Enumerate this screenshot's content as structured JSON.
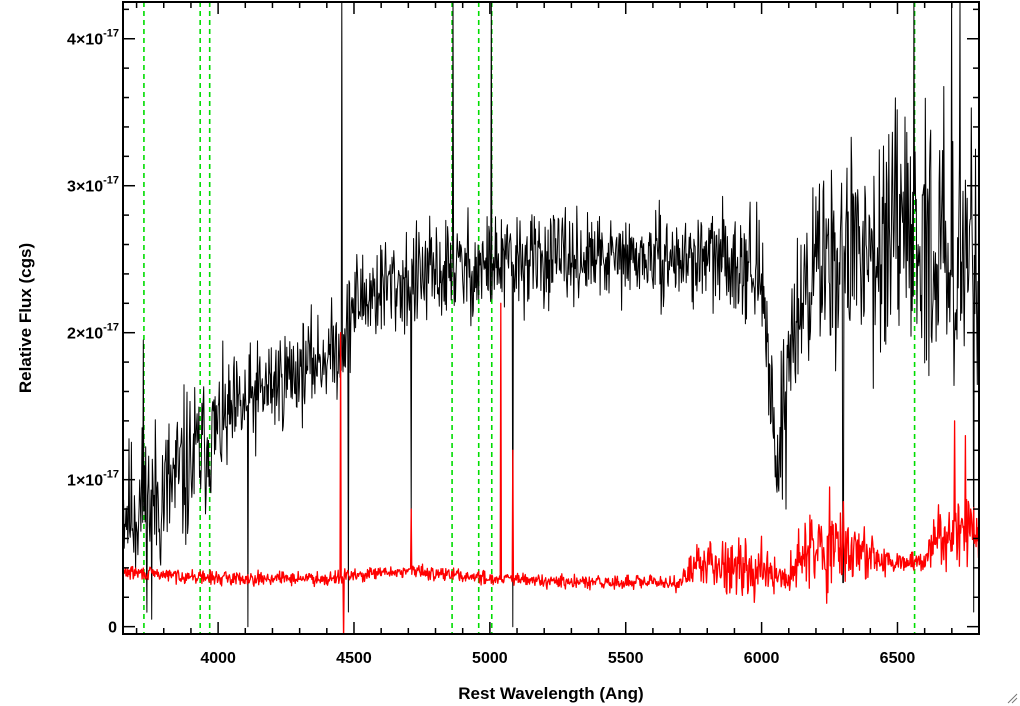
{
  "chart_data": {
    "type": "line",
    "xlabel": "Rest Wavelength (Ang)",
    "ylabel": "Relative Flux (cgs)",
    "xlim": [
      3650,
      6800
    ],
    "ylim": [
      -5e-19,
      4.25e-17
    ],
    "x_ticks": [
      {
        "value": 4000,
        "label": "4000"
      },
      {
        "value": 4500,
        "label": "4500"
      },
      {
        "value": 5000,
        "label": "5000"
      },
      {
        "value": 5500,
        "label": "5500"
      },
      {
        "value": 6000,
        "label": "6000"
      },
      {
        "value": 6500,
        "label": "6500"
      }
    ],
    "y_ticks": [
      {
        "value": 0,
        "mantissa": "0",
        "exponent": ""
      },
      {
        "value": 1e-17,
        "mantissa": "1×10",
        "exponent": "-17"
      },
      {
        "value": 2e-17,
        "mantissa": "2×10",
        "exponent": "-17"
      },
      {
        "value": 3e-17,
        "mantissa": "3×10",
        "exponent": "-17"
      },
      {
        "value": 4e-17,
        "mantissa": "4×10",
        "exponent": "-17"
      }
    ],
    "x_minor_step": 100,
    "y_minor_step": 2e-18,
    "grid": false,
    "series": [
      {
        "color": "#000000",
        "stroke_width": 1,
        "noise_seed": 11,
        "anchors": [
          [
            3660,
            8e-18,
            5e-18
          ],
          [
            3700,
            8e-18,
            6e-18
          ],
          [
            3800,
            9e-18,
            6e-18
          ],
          [
            3900,
            1.1e-17,
            6e-18
          ],
          [
            4000,
            1.35e-17,
            4.5e-18
          ],
          [
            4100,
            1.5e-17,
            4e-18
          ],
          [
            4200,
            1.65e-17,
            4e-18
          ],
          [
            4300,
            1.75e-17,
            3.5e-18
          ],
          [
            4450,
            1.9e-17,
            3.5e-18
          ],
          [
            4500,
            2.2e-17,
            4e-18
          ],
          [
            4600,
            2.3e-17,
            4e-18
          ],
          [
            4800,
            2.4e-17,
            4e-18
          ],
          [
            5000,
            2.45e-17,
            4e-18
          ],
          [
            5200,
            2.5e-17,
            3.5e-18
          ],
          [
            5400,
            2.5e-17,
            3e-18
          ],
          [
            5600,
            2.5e-17,
            3e-18
          ],
          [
            5800,
            2.5e-17,
            3.5e-18
          ],
          [
            5950,
            2.5e-17,
            4e-18
          ],
          [
            6000,
            2.3e-17,
            5e-18
          ],
          [
            6060,
            1.1e-17,
            4e-18
          ],
          [
            6100,
            1.9e-17,
            6e-18
          ],
          [
            6200,
            2.5e-17,
            7e-18
          ],
          [
            6400,
            2.6e-17,
            8e-18
          ],
          [
            6600,
            2.6e-17,
            9e-18
          ],
          [
            6800,
            2.5e-17,
            1e-17
          ]
        ],
        "spikes": [
          [
            3725,
            1.95e-17
          ],
          [
            3755,
            5e-19
          ],
          [
            4110,
            0.0
          ],
          [
            4455,
            4.3e-17
          ],
          [
            4480,
            1e-18
          ],
          [
            4710,
            7e-18
          ],
          [
            4865,
            4.3e-17
          ],
          [
            5005,
            4.3e-17
          ],
          [
            5085,
            0.0
          ],
          [
            6090,
            8e-18
          ],
          [
            6300,
            3e-18
          ],
          [
            6560,
            4.3e-17
          ],
          [
            6700,
            4.3e-17
          ],
          [
            6730,
            4.3e-17
          ],
          [
            6780,
            1e-18
          ]
        ]
      },
      {
        "color": "#ff0000",
        "stroke_width": 1.3,
        "noise_seed": 29,
        "anchors": [
          [
            3660,
            3.7e-18,
            5e-19
          ],
          [
            4000,
            3.3e-18,
            5e-19
          ],
          [
            4400,
            3.3e-18,
            5e-19
          ],
          [
            4700,
            3.8e-18,
            5e-19
          ],
          [
            5000,
            3.3e-18,
            5e-19
          ],
          [
            5300,
            3e-18,
            5e-19
          ],
          [
            5700,
            3e-18,
            6e-19
          ],
          [
            5780,
            4.5e-18,
            2e-18
          ],
          [
            6000,
            4e-18,
            2e-18
          ],
          [
            6080,
            3e-18,
            1e-18
          ],
          [
            6150,
            5e-18,
            3e-18
          ],
          [
            6300,
            5.5e-18,
            3e-18
          ],
          [
            6480,
            4.2e-18,
            1e-18
          ],
          [
            6600,
            4.5e-18,
            8e-19
          ],
          [
            6650,
            6.5e-18,
            2e-18
          ],
          [
            6800,
            6.5e-18,
            3e-18
          ]
        ],
        "spikes": [
          [
            4450,
            2e-17
          ],
          [
            4462,
            -1e-18
          ],
          [
            4710,
            8e-18
          ],
          [
            5040,
            2.2e-17
          ],
          [
            5085,
            1.2e-17
          ],
          [
            6250,
            9.5e-18
          ],
          [
            6710,
            1.4e-17
          ],
          [
            6750,
            1.3e-17
          ]
        ]
      }
    ],
    "reference_lines": {
      "color": "#00dd00",
      "style": "dashed",
      "x": [
        3727,
        3934,
        3969,
        4861,
        4959,
        5007,
        6563
      ]
    }
  },
  "window": {
    "resize_grip_icon": "resize-grip-icon"
  }
}
